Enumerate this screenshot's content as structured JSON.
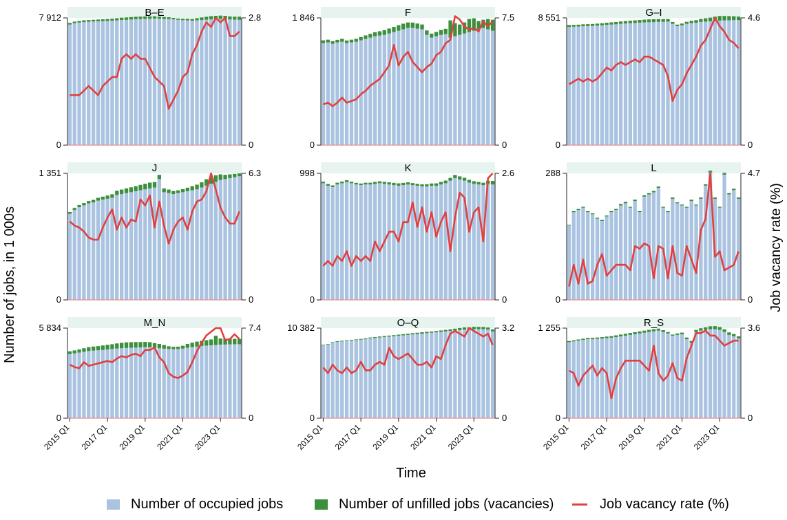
{
  "colors": {
    "occupied": "#a9c3e0",
    "vacancies": "#3c8f3c",
    "rate": "#e04040",
    "panel_bg": "#e6f3ee",
    "axis": "#222222",
    "zero_line": "#f08a8a"
  },
  "chart_data": {
    "type": "bar",
    "layout": "faceted 3x3 grid, dual axis per panel",
    "xlabel": "Time",
    "ylabel_left": "Number of jobs, in 1 000s",
    "ylabel_right": "Job vacancy rate (%)",
    "x_tick_labels": [
      "2015 Q1",
      "2017 Q1",
      "2019 Q1",
      "2021 Q1",
      "2023 Q1"
    ],
    "x_tick_index": [
      0,
      8,
      16,
      24,
      32
    ],
    "legend": {
      "occupied": "Number of occupied jobs",
      "vacancies": "Number of unfilled jobs (vacancies)",
      "rate": "Job vacancy rate (%)"
    },
    "panels": [
      {
        "title": "B–E",
        "left_max": 7912,
        "left_max_label": "7 912",
        "right_max": 2.8,
        "right_max_label": "2.8",
        "occupied": [
          7500,
          7580,
          7620,
          7650,
          7670,
          7690,
          7700,
          7710,
          7720,
          7740,
          7760,
          7780,
          7790,
          7810,
          7830,
          7840,
          7850,
          7860,
          7870,
          7860,
          7850,
          7840,
          7820,
          7790,
          7770,
          7760,
          7740,
          7760,
          7780,
          7800,
          7820,
          7830,
          7840,
          7820,
          7810,
          7800,
          7790
        ],
        "vacancies": [
          100,
          100,
          100,
          110,
          110,
          105,
          110,
          115,
          120,
          125,
          130,
          145,
          150,
          150,
          150,
          150,
          150,
          145,
          140,
          125,
          115,
          110,
          90,
          82,
          90,
          100,
          110,
          135,
          160,
          180,
          200,
          210,
          215,
          220,
          190,
          185,
          195
        ],
        "rate": [
          1.1,
          1.1,
          1.1,
          1.2,
          1.3,
          1.2,
          1.1,
          1.3,
          1.4,
          1.5,
          1.5,
          1.9,
          2.0,
          1.9,
          2.0,
          1.9,
          1.9,
          1.7,
          1.5,
          1.4,
          1.3,
          0.8,
          1.0,
          1.2,
          1.5,
          1.6,
          2.0,
          2.2,
          2.5,
          2.7,
          2.6,
          2.8,
          2.7,
          2.8,
          2.4,
          2.4,
          2.5
        ]
      },
      {
        "title": "F",
        "left_max": 1846,
        "left_max_label": "1 846",
        "right_max": 7.5,
        "right_max_label": "7.5",
        "occupied": [
          1480,
          1490,
          1470,
          1490,
          1500,
          1480,
          1490,
          1500,
          1520,
          1540,
          1560,
          1580,
          1590,
          1600,
          1620,
          1640,
          1660,
          1680,
          1700,
          1700,
          1690,
          1680,
          1600,
          1560,
          1580,
          1600,
          1610,
          1560,
          1580,
          1600,
          1620,
          1640,
          1660,
          1680,
          1700,
          1680,
          1660
        ],
        "vacancies": [
          40,
          40,
          38,
          38,
          42,
          38,
          40,
          42,
          48,
          52,
          55,
          58,
          62,
          68,
          72,
          75,
          80,
          82,
          80,
          78,
          74,
          70,
          64,
          58,
          62,
          70,
          78,
          250,
          190,
          150,
          160,
          190,
          180,
          120,
          120,
          150,
          160
        ],
        "rate": [
          2.4,
          2.5,
          2.3,
          2.5,
          2.8,
          2.5,
          2.6,
          2.7,
          3.0,
          3.2,
          3.5,
          3.7,
          3.9,
          4.3,
          4.7,
          5.9,
          4.7,
          5.2,
          5.5,
          4.9,
          4.6,
          4.3,
          4.6,
          4.8,
          5.3,
          5.5,
          6.0,
          6.2,
          7.6,
          7.4,
          7.0,
          6.8,
          6.9,
          6.7,
          7.3,
          7.0,
          7.3
        ]
      },
      {
        "title": "G–I",
        "left_max": 8551,
        "left_max_label": "8 551",
        "right_max": 4.6,
        "right_max_label": "4.6",
        "occupied": [
          7950,
          7960,
          7970,
          7990,
          8000,
          8010,
          8030,
          8050,
          8080,
          8100,
          8120,
          8150,
          8170,
          8190,
          8210,
          8230,
          8250,
          8260,
          8270,
          8280,
          8290,
          8300,
          8150,
          8000,
          8050,
          8150,
          8200,
          8220,
          8280,
          8300,
          8320,
          8350,
          8370,
          8380,
          8390,
          8400,
          8400
        ],
        "vacancies": [
          120,
          122,
          125,
          128,
          130,
          133,
          136,
          140,
          145,
          150,
          155,
          160,
          165,
          170,
          175,
          180,
          185,
          190,
          195,
          190,
          180,
          175,
          130,
          100,
          120,
          140,
          160,
          180,
          200,
          225,
          250,
          280,
          310,
          300,
          280,
          260,
          240
        ],
        "rate": [
          2.2,
          2.3,
          2.4,
          2.3,
          2.4,
          2.3,
          2.4,
          2.6,
          2.8,
          2.7,
          2.9,
          3.0,
          2.9,
          3.0,
          3.1,
          3.0,
          3.2,
          3.2,
          3.1,
          3.0,
          2.9,
          2.5,
          1.6,
          2.0,
          2.2,
          2.6,
          2.9,
          3.2,
          3.6,
          3.8,
          4.2,
          4.6,
          4.3,
          4.1,
          3.8,
          3.7,
          3.5
        ]
      },
      {
        "title": "J",
        "left_max": 1351,
        "left_max_label": "1 351",
        "right_max": 6.3,
        "right_max_label": "6.3",
        "occupied": [
          920,
          960,
          990,
          1010,
          1030,
          1040,
          1060,
          1070,
          1080,
          1090,
          1120,
          1130,
          1140,
          1150,
          1160,
          1170,
          1180,
          1190,
          1200,
          1290,
          1150,
          1140,
          1130,
          1140,
          1150,
          1160,
          1170,
          1180,
          1200,
          1220,
          1240,
          1260,
          1280,
          1290,
          1300,
          1310,
          1320
        ],
        "vacancies": [
          20,
          22,
          24,
          25,
          26,
          28,
          30,
          32,
          34,
          38,
          45,
          48,
          50,
          52,
          54,
          58,
          60,
          62,
          58,
          45,
          40,
          38,
          32,
          30,
          32,
          38,
          44,
          50,
          55,
          68,
          75,
          70,
          60,
          45,
          40,
          35,
          30
        ],
        "rate": [
          3.9,
          3.7,
          3.6,
          3.4,
          3.1,
          3.0,
          3.0,
          3.6,
          4.1,
          4.5,
          3.5,
          4.1,
          3.6,
          4.0,
          3.9,
          5.0,
          4.7,
          5.2,
          3.6,
          4.9,
          3.7,
          2.8,
          3.5,
          3.9,
          4.1,
          3.5,
          4.4,
          4.9,
          5.0,
          5.4,
          6.3,
          5.5,
          4.6,
          4.1,
          3.8,
          3.8,
          4.4
        ]
      },
      {
        "title": "K",
        "left_max": 998,
        "left_max_label": "998",
        "right_max": 2.6,
        "right_max_label": "2.6",
        "occupied": [
          920,
          900,
          890,
          910,
          920,
          930,
          920,
          910,
          905,
          910,
          910,
          915,
          920,
          915,
          910,
          905,
          900,
          905,
          910,
          905,
          900,
          895,
          895,
          900,
          900,
          910,
          920,
          940,
          960,
          950,
          940,
          925,
          915,
          910,
          905,
          915,
          910
        ],
        "vacancies": [
          12,
          14,
          13,
          14,
          13,
          14,
          12,
          13,
          13,
          14,
          14,
          15,
          15,
          16,
          17,
          18,
          19,
          18,
          17,
          16,
          15,
          16,
          17,
          18,
          19,
          20,
          21,
          22,
          25,
          24,
          23,
          22,
          21,
          20,
          19,
          25,
          28
        ],
        "rate": [
          0.7,
          0.8,
          0.7,
          0.9,
          0.8,
          1.0,
          0.7,
          0.9,
          0.8,
          0.9,
          0.8,
          1.2,
          1.0,
          1.2,
          1.4,
          1.4,
          1.2,
          1.6,
          1.6,
          2.0,
          1.5,
          1.9,
          1.4,
          1.8,
          1.3,
          1.6,
          1.8,
          1.0,
          1.7,
          2.2,
          2.1,
          1.4,
          1.8,
          1.9,
          1.2,
          2.5,
          2.6
        ]
      },
      {
        "title": "L",
        "left_max": 288,
        "left_max_label": "288",
        "right_max": 4.7,
        "right_max_label": "4.7",
        "occupied": [
          170,
          200,
          205,
          210,
          200,
          195,
          185,
          180,
          190,
          200,
          205,
          215,
          220,
          210,
          225,
          200,
          235,
          240,
          245,
          255,
          210,
          200,
          230,
          220,
          215,
          210,
          225,
          215,
          230,
          260,
          290,
          230,
          210,
          285,
          240,
          250,
          230
        ],
        "vacancies": [
          1,
          2,
          2,
          2,
          2,
          2,
          2,
          2,
          2,
          2,
          2,
          3,
          3,
          2,
          3,
          2,
          3,
          3,
          3,
          3,
          2,
          2,
          3,
          2,
          2,
          2,
          3,
          2,
          3,
          3,
          4,
          3,
          2,
          4,
          3,
          3,
          3
        ],
        "rate": [
          0.5,
          1.3,
          0.6,
          1.5,
          0.6,
          0.7,
          1.3,
          1.7,
          0.9,
          1.1,
          1.3,
          1.3,
          1.3,
          1.1,
          2.0,
          1.9,
          2.1,
          2.0,
          0.8,
          2.0,
          1.9,
          0.8,
          2.0,
          1.0,
          0.9,
          2.0,
          1.5,
          1.0,
          2.6,
          3.0,
          4.7,
          1.6,
          1.8,
          1.1,
          1.2,
          1.3,
          1.8
        ]
      },
      {
        "title": "M_N",
        "left_max": 5834,
        "left_max_label": "5 834",
        "right_max": 7.4,
        "right_max_label": "7.4",
        "occupied": [
          4150,
          4200,
          4250,
          4300,
          4350,
          4380,
          4400,
          4420,
          4450,
          4480,
          4510,
          4530,
          4550,
          4560,
          4570,
          4580,
          4600,
          4590,
          4560,
          4530,
          4500,
          4480,
          4470,
          4480,
          4510,
          4560,
          4600,
          4640,
          4680,
          4700,
          4720,
          4740,
          4760,
          4770,
          4780,
          4790,
          4790
        ],
        "vacancies": [
          180,
          190,
          200,
          230,
          250,
          260,
          270,
          290,
          300,
          310,
          330,
          350,
          360,
          360,
          360,
          350,
          340,
          330,
          300,
          280,
          240,
          180,
          150,
          150,
          180,
          250,
          290,
          320,
          330,
          350,
          380,
          600,
          400,
          380,
          360,
          350,
          340
        ],
        "rate": [
          4.4,
          4.2,
          4.1,
          4.6,
          4.3,
          4.4,
          4.5,
          4.6,
          4.7,
          4.6,
          4.9,
          5.1,
          5.0,
          5.2,
          5.3,
          5.1,
          5.6,
          5.6,
          5.8,
          5.0,
          4.6,
          3.7,
          3.4,
          3.3,
          3.5,
          3.8,
          4.6,
          5.5,
          6.2,
          6.8,
          7.1,
          7.4,
          7.4,
          6.4,
          6.5,
          6.9,
          6.5
        ]
      },
      {
        "title": "O–Q",
        "left_max": 10382,
        "left_max_label": "10 382",
        "right_max": 3.2,
        "right_max_label": "3.2",
        "occupied": [
          8400,
          8500,
          8700,
          8800,
          8850,
          8900,
          8950,
          9000,
          9050,
          9100,
          9200,
          9250,
          9300,
          9350,
          9400,
          9450,
          9500,
          9550,
          9600,
          9650,
          9700,
          9750,
          9800,
          9850,
          9900,
          9950,
          10000,
          10050,
          10100,
          10150,
          10200,
          10200,
          10250,
          10250,
          10250,
          10200,
          10000
        ],
        "vacancies": [
          60,
          60,
          70,
          70,
          75,
          80,
          80,
          85,
          90,
          95,
          100,
          105,
          110,
          115,
          120,
          125,
          130,
          135,
          140,
          145,
          150,
          155,
          150,
          140,
          145,
          160,
          180,
          200,
          220,
          240,
          260,
          270,
          280,
          270,
          260,
          250,
          230
        ],
        "rate": [
          1.8,
          1.6,
          1.9,
          1.7,
          1.6,
          1.8,
          1.6,
          1.7,
          2.0,
          1.7,
          1.7,
          1.9,
          2.0,
          1.9,
          2.5,
          2.2,
          2.1,
          2.2,
          2.3,
          2.1,
          1.9,
          1.9,
          2.0,
          1.8,
          2.2,
          2.1,
          2.6,
          3.0,
          3.1,
          3.0,
          2.9,
          3.2,
          3.1,
          3.0,
          2.9,
          3.0,
          2.6
        ]
      },
      {
        "title": "R_S",
        "left_max": 1255,
        "left_max_label": "1 255",
        "right_max": 3.6,
        "right_max_label": "3.6",
        "occupied": [
          1060,
          1070,
          1080,
          1090,
          1100,
          1100,
          1105,
          1110,
          1115,
          1120,
          1130,
          1140,
          1150,
          1160,
          1170,
          1180,
          1190,
          1200,
          1210,
          1220,
          1200,
          1180,
          1150,
          1160,
          1170,
          1100,
          1050,
          1200,
          1220,
          1230,
          1240,
          1240,
          1230,
          1200,
          1160,
          1140,
          1110
        ],
        "vacancies": [
          15,
          16,
          17,
          18,
          18,
          19,
          19,
          20,
          22,
          23,
          24,
          25,
          26,
          27,
          28,
          29,
          30,
          31,
          30,
          28,
          26,
          20,
          15,
          20,
          22,
          24,
          26,
          30,
          33,
          36,
          40,
          42,
          40,
          38,
          35,
          33,
          30
        ],
        "rate": [
          1.9,
          1.8,
          1.3,
          1.7,
          1.9,
          2.1,
          1.7,
          2.0,
          1.8,
          0.8,
          1.6,
          2.0,
          2.3,
          2.3,
          2.3,
          2.3,
          2.1,
          1.9,
          2.9,
          1.8,
          1.5,
          1.7,
          2.2,
          1.6,
          1.5,
          2.4,
          2.9,
          3.4,
          3.4,
          3.5,
          3.3,
          3.3,
          3.1,
          2.9,
          3.0,
          3.1,
          3.1
        ]
      }
    ]
  }
}
